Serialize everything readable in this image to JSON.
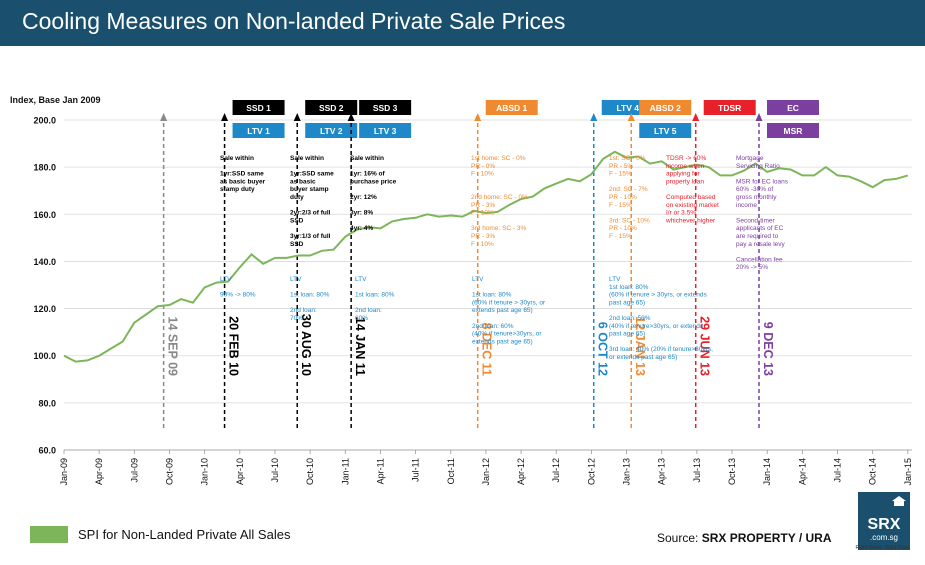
{
  "header": {
    "title": "Cooling Measures on Non-landed Private Sale Prices"
  },
  "legend": {
    "label": "SPI for Non-Landed Private All Sales",
    "color": "#7db65a"
  },
  "source": {
    "prefix": "Source: ",
    "name": "SRX PROPERTY / URA"
  },
  "logo": {
    "main": "SRX",
    "sub": ".com.sg",
    "tagline": "Right Home. Right Price."
  },
  "chart_data": {
    "type": "line",
    "ylabel": "Index, Base Jan 2009",
    "ylim": [
      60,
      200
    ],
    "yticks": [
      "60.0",
      "80.0",
      "100.0",
      "120.0",
      "140.0",
      "160.0",
      "180.0",
      "200.0"
    ],
    "xticks": [
      "Jan-09",
      "Apr-09",
      "Jul-09",
      "Oct-09",
      "Jan-10",
      "Apr-10",
      "Jul-10",
      "Oct-10",
      "Jan-11",
      "Apr-11",
      "Jul-11",
      "Oct-11",
      "Jan-12",
      "Apr-12",
      "Jul-12",
      "Oct-12",
      "Jan-13",
      "Apr-13",
      "Jul-13",
      "Oct-13",
      "Jan-14",
      "Apr-14",
      "Jul-14",
      "Oct-14",
      "Jan-15"
    ],
    "series": [
      {
        "name": "SPI for Non-Landed Private All Sales",
        "color": "#7db65a",
        "values": [
          100.0,
          97.5,
          98.0,
          100.0,
          103.0,
          106.0,
          114.0,
          117.5,
          121.0,
          121.5,
          124.0,
          122.5,
          129.0,
          131.0,
          131.5,
          137.5,
          143.0,
          139.0,
          141.5,
          141.5,
          142.5,
          142.5,
          144.5,
          145.0,
          150.5,
          153.5,
          154.5,
          154.0,
          157.0,
          158.0,
          158.5,
          160.0,
          159.0,
          159.5,
          159.0,
          161.5,
          160.5,
          161.0,
          164.0,
          166.5,
          167.5,
          171.0,
          173.0,
          175.0,
          174.0,
          177.0,
          183.5,
          186.5,
          184.0,
          184.5,
          181.5,
          182.5,
          179.0,
          180.0,
          181.0,
          180.0,
          176.5,
          176.5,
          178.5,
          181.5,
          178.0,
          179.5,
          179.0,
          176.5,
          176.5,
          180.0,
          176.5,
          176.0,
          174.0,
          171.5,
          174.5,
          175.0,
          176.5
        ]
      }
    ],
    "events": [
      {
        "date": "14 SEP 09",
        "index": 8.5,
        "color": "#888888",
        "tags": []
      },
      {
        "date": "20 FEB 10",
        "index": 13.7,
        "color": "#000000",
        "tags": [
          {
            "label": "SSD 1",
            "bg": "#000000"
          },
          {
            "label": "LTV 1",
            "bg": "#1e88c8"
          }
        ]
      },
      {
        "date": "30 AUG 10",
        "index": 19.9,
        "color": "#000000",
        "tags": [
          {
            "label": "SSD 2",
            "bg": "#000000"
          },
          {
            "label": "LTV 2",
            "bg": "#1e88c8"
          }
        ]
      },
      {
        "date": "14 JAN 11",
        "index": 24.5,
        "color": "#000000",
        "tags": [
          {
            "label": "SSD 3",
            "bg": "#000000"
          },
          {
            "label": "LTV 3",
            "bg": "#1e88c8"
          }
        ]
      },
      {
        "date": "8 DEC 11",
        "index": 35.3,
        "color": "#f08a30",
        "tags": [
          {
            "label": "ABSD 1",
            "bg": "#f08a30"
          }
        ]
      },
      {
        "date": "6 OCT 12",
        "index": 45.2,
        "color": "#1e88c8",
        "tags": [
          {
            "label": "LTV 4",
            "bg": "#1e88c8"
          }
        ]
      },
      {
        "date": "12 JAN 13",
        "index": 48.4,
        "color": "#f08a30",
        "tags": [
          {
            "label": "ABSD 2",
            "bg": "#f08a30"
          },
          {
            "label": "LTV 5",
            "bg": "#1e88c8"
          }
        ]
      },
      {
        "date": "29 JUN 13",
        "index": 53.9,
        "color": "#e8202a",
        "tags": [
          {
            "label": "TDSR",
            "bg": "#e8202a"
          }
        ]
      },
      {
        "date": "9 DEC 13",
        "index": 59.3,
        "color": "#7b3fa0",
        "tags": [
          {
            "label": "EC",
            "bg": "#7b3fa0"
          },
          {
            "label": "MSR",
            "bg": "#7b3fa0"
          }
        ]
      }
    ],
    "annotations": [
      {
        "color": "#000000",
        "weight": "bold",
        "anchor": "SSD 1",
        "lines": [
          "Sale within",
          "",
          "1yr:SSD same",
          "as basic buyer",
          "stamp duty"
        ]
      },
      {
        "color": "#000000",
        "weight": "bold",
        "anchor": "SSD 2",
        "lines": [
          "Sale within",
          "",
          "1yr:SSD same",
          "as basic",
          "buyer stamp",
          "duty",
          "",
          "2yr:2/3 of full",
          "SSD",
          "",
          "3yr:1/3 of full",
          "SSD"
        ]
      },
      {
        "color": "#000000",
        "weight": "bold",
        "anchor": "SSD 3",
        "lines": [
          "Sale within",
          "",
          "1yr: 16% of",
          "purchase price",
          "",
          "2yr: 12%",
          "",
          "3yr: 8%",
          "",
          "4yr: 4%"
        ]
      },
      {
        "color": "#f08a30",
        "weight": "normal",
        "anchor": "ABSD 1",
        "lines": [
          "1st home:  SC - 0%",
          "PR - 0%",
          "F - 10%",
          "",
          "",
          "2nd home: SC - 0%",
          "PR - 3%",
          "F - 10%",
          "",
          "3rd home: SC - 3%",
          "PR - 3%",
          "F - 10%"
        ]
      },
      {
        "color": "#f08a30",
        "weight": "normal",
        "anchor": "ABSD 2",
        "lines": [
          "1st: SC - 0%",
          "PR - 5%",
          "F - 15%",
          "",
          "2nd: SC - 7%",
          "PR - 10%",
          "F - 15%",
          "",
          "3rd: SC - 10%",
          "PR - 10%",
          "F - 15%"
        ]
      },
      {
        "color": "#e8202a",
        "weight": "normal",
        "anchor": "TDSR",
        "lines": [
          "TDSR -> 60%",
          "income when",
          "applying for",
          "property loan",
          "",
          "Computed based",
          "on existing market",
          "I/r or 3.5%",
          "whichever higher"
        ]
      },
      {
        "color": "#7b3fa0",
        "weight": "normal",
        "anchor": "EC",
        "lines": [
          "Mortgage",
          "Servicing Ratio",
          "",
          "MSR for EC loans",
          "60% -30% of",
          "gross monthly",
          "income",
          "",
          "Second-timer",
          "applicants of EC",
          "are required to",
          "pay a resale levy",
          "",
          "Cancellation fee",
          "20% -> 5%"
        ]
      },
      {
        "color": "#1e88c8",
        "weight": "normal",
        "anchor": "LTV 1",
        "lines": [
          "LTV",
          "",
          "90% -> 80%"
        ]
      },
      {
        "color": "#1e88c8",
        "weight": "normal",
        "anchor": "LTV 2",
        "lines": [
          "LTV",
          "",
          "1st loan: 80%",
          "",
          "2nd loan:",
          "70%"
        ]
      },
      {
        "color": "#1e88c8",
        "weight": "normal",
        "anchor": "LTV 3",
        "lines": [
          "LTV",
          "",
          "1st loan: 80%",
          "",
          "2nd loan:",
          "60%"
        ]
      },
      {
        "color": "#1e88c8",
        "weight": "normal",
        "anchor": "LTV 4",
        "lines": [
          "LTV",
          "",
          "1st loan: 80%",
          "(60% if tenure > 30yrs, or",
          "extends past age 65)",
          "",
          "2nd loan: 60%",
          "(40% if tenure>30yrs, or",
          "extends past age 65)"
        ]
      },
      {
        "color": "#1e88c8",
        "weight": "normal",
        "anchor": "LTV 5",
        "lines": [
          "LTV",
          "1st loan: 80%",
          "(60% if tenure > 30yrs, or extends",
          "past age 65)",
          "",
          "2nd loan: 50%",
          "(40% if tenure>30yrs, or extends",
          "past age 65)",
          "",
          "3rd loan: 40% (20% if tenure>30yrs,",
          "or extends past age 65)"
        ]
      }
    ]
  }
}
